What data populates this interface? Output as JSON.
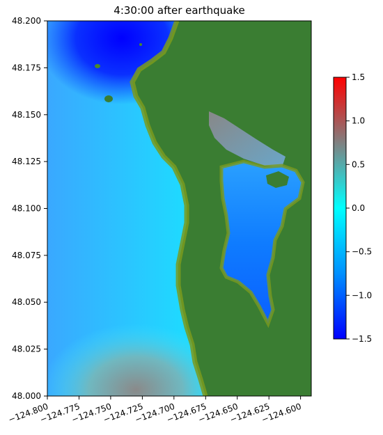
{
  "title": "4:30:00 after earthquake",
  "map": {
    "type": "heatmap",
    "x_ticks": [
      "−124.800",
      "−124.775",
      "−124.750",
      "−124.725",
      "−124.700",
      "−124.675",
      "−124.650",
      "−124.625",
      "−124.600"
    ],
    "y_ticks": [
      "48.200",
      "48.175",
      "48.150",
      "48.125",
      "48.100",
      "48.075",
      "48.050",
      "48.025",
      "48.000"
    ],
    "xlim": [
      -124.81,
      -124.593
    ],
    "ylim": [
      48.0,
      48.2
    ],
    "land_color": "#3a7d32",
    "shore_color": "#7a9a1e"
  },
  "colorbar": {
    "ticks": [
      "1.5",
      "1.0",
      "0.5",
      "0.0",
      "−0.5",
      "−1.0",
      "−1.5"
    ],
    "range": [
      -1.5,
      1.5
    ],
    "stops": [
      "#0000ff",
      "#0090ff",
      "#00ffff",
      "#808080",
      "#ff0000"
    ]
  }
}
